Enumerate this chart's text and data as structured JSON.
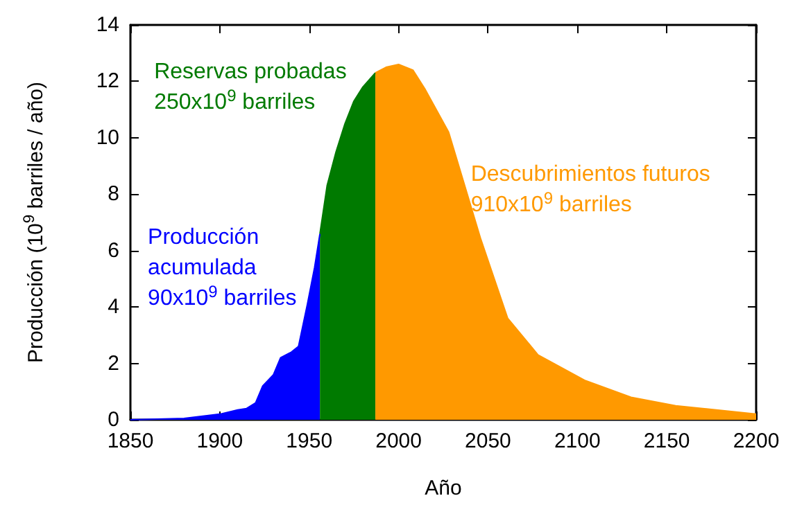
{
  "chart_data": {
    "type": "area",
    "xlabel": "Año",
    "ylabel": "Producción (10$^{9}$ barriles / año)",
    "xlim": [
      1850,
      2200
    ],
    "xticks": [
      1850,
      1900,
      1950,
      2000,
      2050,
      2100,
      2150,
      2200
    ],
    "ylim": [
      0,
      14
    ],
    "yticks": [
      0,
      2,
      4,
      6,
      8,
      10,
      12,
      14
    ],
    "grid": false,
    "series": [
      {
        "color": "#0000ff",
        "x": [
          1850,
          1880,
          1900,
          1910,
          1915,
          1920,
          1924,
          1930,
          1934,
          1940,
          1944,
          1949,
          1953,
          1956
        ],
        "values": [
          0,
          0.05,
          0.2,
          0.35,
          0.4,
          0.6,
          1.2,
          1.6,
          2.2,
          2.4,
          2.6,
          4.1,
          5.4,
          6.6
        ]
      },
      {
        "color": "#007a00",
        "x": [
          1956,
          1960,
          1965,
          1970,
          1975,
          1980,
          1987
        ],
        "values": [
          6.6,
          8.3,
          9.5,
          10.5,
          11.3,
          11.8,
          12.3
        ]
      },
      {
        "color": "#ff9900",
        "x": [
          1987,
          1993,
          2000,
          2008,
          2015,
          2028,
          2046,
          2061,
          2078,
          2104,
          2130,
          2155,
          2200
        ],
        "values": [
          12.3,
          12.5,
          12.6,
          12.4,
          11.7,
          10.2,
          6.4,
          3.6,
          2.3,
          1.4,
          0.8,
          0.5,
          0.2
        ]
      }
    ],
    "annotations": [
      "Producción\nacumulada\n90x10$^{9}$ barriles",
      "Reservas probadas\n250x10$^{9}$ barriles",
      "Descubrimientos futuros\n910x10$^{9}$ barriles"
    ]
  }
}
